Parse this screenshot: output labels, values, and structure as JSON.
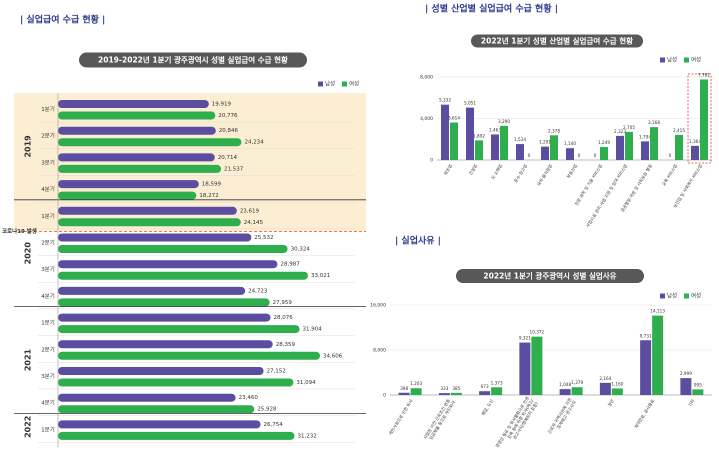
{
  "chart_data": [
    {
      "type": "hbar",
      "section_title": "| 실업급여 수급 현황 |",
      "title": "2019-2022년 1분기 광주광역시 성별 실업급여 수급 현황",
      "annotation": "코로나19 발생",
      "groups": [
        {
          "label": "2019",
          "categories": [
            "1분기",
            "2분기",
            "3분기",
            "4분기"
          ]
        },
        {
          "label": "2020",
          "categories": [
            "1분기",
            "2분기",
            "3분기",
            "4분기"
          ]
        },
        {
          "label": "2021",
          "categories": [
            "1분기",
            "2분기",
            "3분기",
            "4분기"
          ]
        },
        {
          "label": "2022",
          "categories": [
            "1분기"
          ]
        }
      ],
      "series": [
        {
          "name": "남성",
          "color": "#5b4ea0",
          "values": [
            19919,
            20846,
            20714,
            18599,
            23619,
            25532,
            28987,
            24723,
            28076,
            28359,
            27152,
            23460,
            26754
          ],
          "value_labels": [
            "19,919",
            "20,846",
            "20,714",
            "18,599",
            "23,619",
            "25,532",
            "28,987",
            "24,723",
            "28,076",
            "28,359",
            "27,152",
            "23,460",
            "26,754"
          ]
        },
        {
          "name": "여성",
          "color": "#2fae4e",
          "values": [
            20776,
            24234,
            21537,
            18272,
            24145,
            30324,
            33021,
            27959,
            31904,
            34606,
            31094,
            25928,
            31232
          ],
          "value_labels": [
            "20,776",
            "24,234",
            "21,537",
            "18,272",
            "24,145",
            "30,324",
            "33,021",
            "27,959",
            "31,904",
            "34,606",
            "31,094",
            "25,928",
            "31,232"
          ]
        }
      ]
    },
    {
      "type": "bar",
      "section_title": "| 성별 산업별 실업급여 수급 현황 |",
      "title": "2022년 1분기 성별 산업별 실업급여 수급 현황",
      "categories": [
        [
          "제조업"
        ],
        [
          "건설업"
        ],
        [
          "도·소매업"
        ],
        [
          "운수·창고업"
        ],
        [
          "숙박·음식점업"
        ],
        [
          "부동산업"
        ],
        [
          "전문·과학 및 기술 서비스업"
        ],
        [
          "사업시설 관리·사업 지원 및 임대 서비스업"
        ],
        [
          "공공행정·국방 및 사회보장 행정"
        ],
        [
          "교육 서비스업"
        ],
        [
          "보건업 및 사회복지 서비스업"
        ]
      ],
      "highlight": "보건업 및 사회복지 서비스업",
      "ylim": [
        0,
        8000
      ],
      "yticks": [
        0,
        {
          "value": 4000,
          "label": "4,000"
        },
        {
          "value": 8000,
          "label": "8,000"
        }
      ],
      "series": [
        {
          "name": "남성",
          "color": "#5b4ea0",
          "values": [
            5332,
            5051,
            2463,
            1534,
            1291,
            1140,
            0,
            2323,
            1794,
            0,
            1364
          ],
          "value_labels": [
            "5,332",
            "5,051",
            "2,463",
            "1,534",
            "1,291",
            "1,140",
            "0",
            "2,323",
            "1,794",
            "0",
            "1,364"
          ]
        },
        {
          "name": "여성",
          "color": "#2fae4e",
          "values": [
            3614,
            1892,
            3290,
            0,
            2378,
            0,
            1249,
            2705,
            3168,
            2415,
            7761
          ],
          "value_labels": [
            "3,614",
            "1,892",
            "3,290",
            "0",
            "2,378",
            "0",
            "1,249",
            "2,705",
            "3,168",
            "2,415",
            "7,761"
          ]
        }
      ]
    },
    {
      "type": "bar",
      "section_title": "| 실업사유 |",
      "title": "2022년 1분기 광주광역시 성별 실업사유",
      "categories": [
        [
          "개인사정으로 인한 퇴사"
        ],
        [
          "사업장 이전·근로조건 변동·",
          "임금체불 등으로 자진퇴사"
        ],
        [
          "폐업, 도산"
        ],
        [
          "경영상 필요 및 회사불황으로 인원",
          "감축 등에 따른 퇴사(해고/",
          "권고사직/명예퇴직 포함)"
        ],
        [
          "근로자 귀책사유에 의한",
          "징계해고·권고사직"
        ],
        [
          "정년"
        ],
        [
          "계약만료, 공사종료"
        ],
        [
          "기타"
        ]
      ],
      "ylim": [
        0,
        16000
      ],
      "yticks": [
        0,
        {
          "value": 8000,
          "label": "8,000"
        },
        {
          "value": 16000,
          "label": "16,000"
        }
      ],
      "series": [
        {
          "name": "남성",
          "color": "#5b4ea0",
          "values": [
            398,
            333,
            673,
            9321,
            1048,
            2164,
            9731,
            2999
          ],
          "value_labels": [
            "398",
            "333",
            "673",
            "9,321",
            "1,048",
            "2,164",
            "9,731",
            "2,999"
          ]
        },
        {
          "name": "여성",
          "color": "#2fae4e",
          "values": [
            1203,
            385,
            1373,
            10372,
            1379,
            1160,
            14113,
            995
          ],
          "value_labels": [
            "1,203",
            "385",
            "1,373",
            "10,372",
            "1,379",
            "1,160",
            "14,113",
            "995"
          ]
        }
      ]
    }
  ]
}
